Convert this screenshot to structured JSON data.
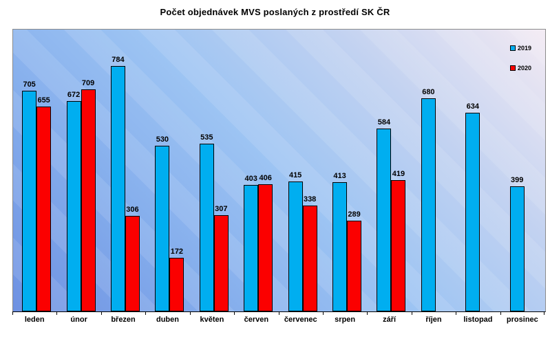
{
  "chart_data": {
    "type": "bar",
    "title": "Počet objednávek MVS poslaných z prostředí SK ČR",
    "categories": [
      "leden",
      "únor",
      "březen",
      "duben",
      "květen",
      "červen",
      "červenec",
      "srpen",
      "září",
      "říjen",
      "listopad",
      "prosinec"
    ],
    "series": [
      {
        "name": "2019",
        "color": "#00aef0",
        "values": [
          705,
          672,
          784,
          530,
          535,
          403,
          415,
          413,
          584,
          680,
          634,
          399
        ]
      },
      {
        "name": "2020",
        "color": "#fb0000",
        "values": [
          655,
          709,
          306,
          172,
          307,
          406,
          338,
          289,
          419,
          null,
          null,
          null
        ]
      }
    ],
    "xlabel": "",
    "ylabel": "",
    "ylim": [
      0,
      900
    ],
    "grid": false,
    "legend_position": "top-right",
    "data_labels": true,
    "plot_background": {
      "gradient_from": "#6e91e2",
      "gradient_mid": "#9dc4f3",
      "gradient_to": "#f3eaf3"
    }
  }
}
